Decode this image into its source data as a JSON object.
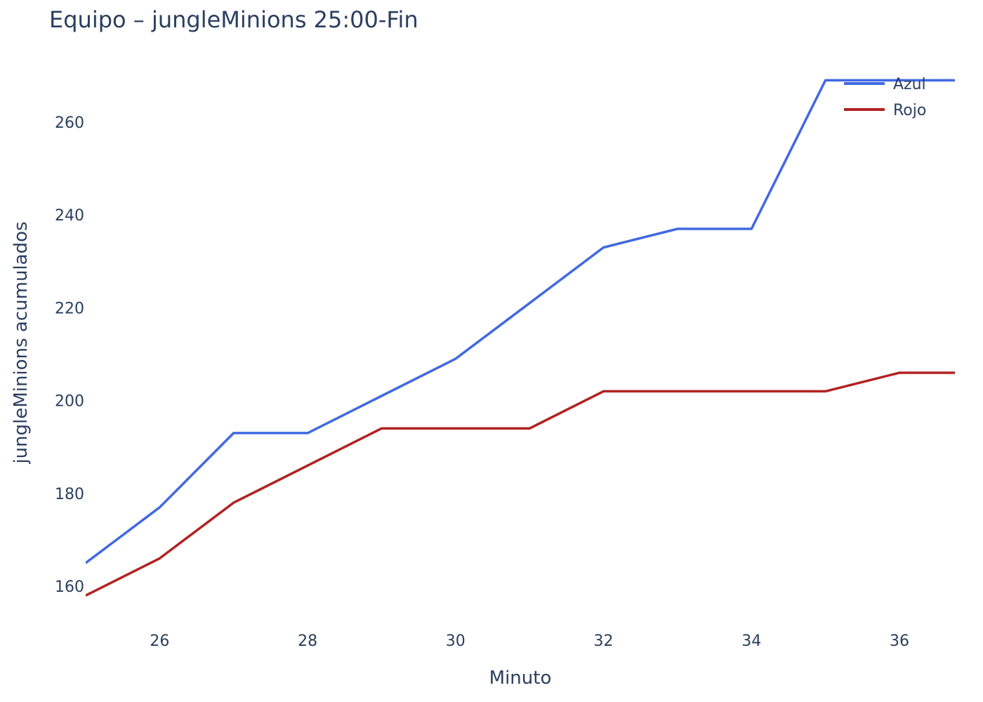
{
  "chart_data": {
    "type": "line",
    "title": "Equipo – jungleMinions 25:00-Fin",
    "xlabel": "Minuto",
    "ylabel": "jungleMinions acumulados",
    "xlim": [
      25,
      36.75
    ],
    "ylim": [
      152,
      273
    ],
    "xticks": [
      26,
      28,
      30,
      32,
      34,
      36
    ],
    "yticks": [
      160,
      180,
      200,
      220,
      240,
      260
    ],
    "grid": false,
    "legend_position": "top-right",
    "x": [
      25,
      26,
      27,
      28,
      29,
      30,
      31,
      32,
      33,
      34,
      35,
      36,
      36.75
    ],
    "series": [
      {
        "name": "Azul",
        "color": "#4169e1",
        "values": [
          165,
          177,
          193,
          193,
          201,
          209,
          221,
          233,
          237,
          237,
          269,
          269,
          269
        ]
      },
      {
        "name": "Rojo",
        "color": "#b22222",
        "values": [
          158,
          166,
          178,
          186,
          194,
          194,
          194,
          202,
          202,
          202,
          202,
          206,
          206
        ]
      }
    ]
  }
}
